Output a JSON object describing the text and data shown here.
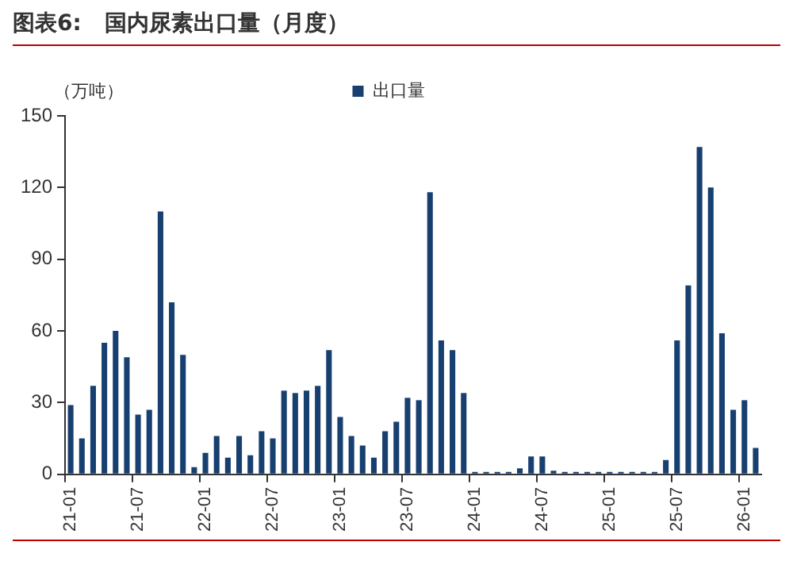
{
  "chart_data": {
    "type": "bar",
    "title": "图表6:   国内尿素出口量（月度）",
    "ylabel": "（万吨）",
    "categories": [
      "21-01",
      null,
      null,
      null,
      null,
      null,
      "21-07",
      null,
      null,
      null,
      null,
      null,
      "22-01",
      null,
      null,
      null,
      null,
      null,
      "22-07",
      null,
      null,
      null,
      null,
      null,
      "23-01",
      null,
      null,
      null,
      null,
      null,
      "23-07",
      null,
      null,
      null,
      null,
      null,
      "24-01",
      null,
      null,
      null,
      null,
      null,
      "24-07",
      null,
      null,
      null,
      null,
      null,
      "25-01",
      null,
      null,
      null,
      null,
      null,
      "25-07",
      null,
      null,
      null,
      null,
      null,
      "26-01",
      null
    ],
    "series": [
      {
        "name": "出口量",
        "color": "#173f6f",
        "values": [
          29,
          15,
          37,
          55,
          60,
          49,
          25,
          27,
          110,
          72,
          50,
          3,
          9,
          16,
          7,
          16,
          8,
          18,
          15,
          35,
          34,
          35,
          37,
          52,
          24,
          16,
          12,
          7,
          18,
          22,
          32,
          31,
          118,
          56,
          52,
          34,
          1,
          1,
          1,
          1,
          2.5,
          7.5,
          7.5,
          1.5,
          1,
          1,
          1,
          1,
          1,
          1,
          1,
          1,
          1,
          6,
          56,
          79,
          137,
          120,
          59,
          27,
          31,
          11
        ]
      }
    ],
    "ylim": [
      0,
      150
    ],
    "yticks": [
      0,
      30,
      60,
      90,
      120,
      150
    ],
    "grid": false,
    "legend": "top"
  }
}
